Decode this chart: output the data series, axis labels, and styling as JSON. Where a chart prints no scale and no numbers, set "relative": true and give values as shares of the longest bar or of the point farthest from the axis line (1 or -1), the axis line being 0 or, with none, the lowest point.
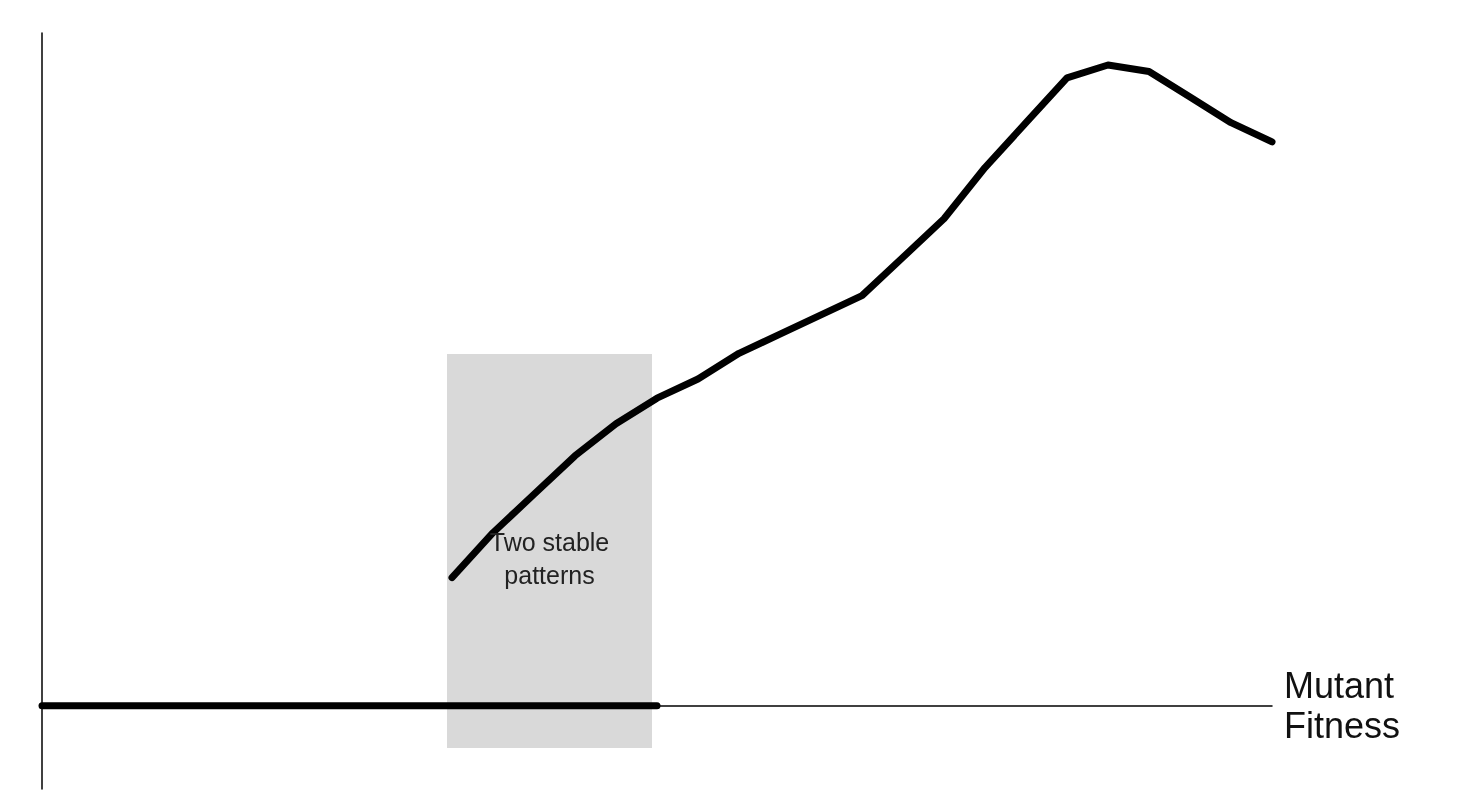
{
  "chart_data": {
    "type": "line",
    "relative": true,
    "xlabel": "Mutant Fitness",
    "marker": "none",
    "line_style": "solid",
    "grid": false,
    "categories": [
      null,
      null,
      null,
      null,
      null,
      null,
      null,
      null,
      null,
      null,
      null,
      null,
      null,
      null,
      null,
      null,
      null,
      null,
      null,
      null,
      null,
      null,
      null,
      null,
      null,
      null,
      null,
      null,
      null,
      null,
      null
    ],
    "series": [
      {
        "color": "#000000",
        "values": [
          0,
          0,
          0,
          0,
          0,
          0,
          0,
          0,
          0,
          0,
          0,
          0,
          0,
          0,
          0,
          0,
          null,
          null,
          null,
          null,
          null,
          null,
          null,
          null,
          null,
          null,
          null,
          null,
          null,
          null,
          null
        ]
      },
      {
        "color": "#000000",
        "values": [
          null,
          null,
          null,
          null,
          null,
          null,
          null,
          null,
          null,
          null,
          0.2,
          0.27,
          0.33,
          0.39,
          0.44,
          0.48,
          0.51,
          0.55,
          0.58,
          0.61,
          0.64,
          0.7,
          0.76,
          0.84,
          0.91,
          0.98,
          1.0,
          0.99,
          0.95,
          0.91,
          0.88
        ]
      }
    ],
    "annotations": [
      "Two stable patterns"
    ]
  }
}
